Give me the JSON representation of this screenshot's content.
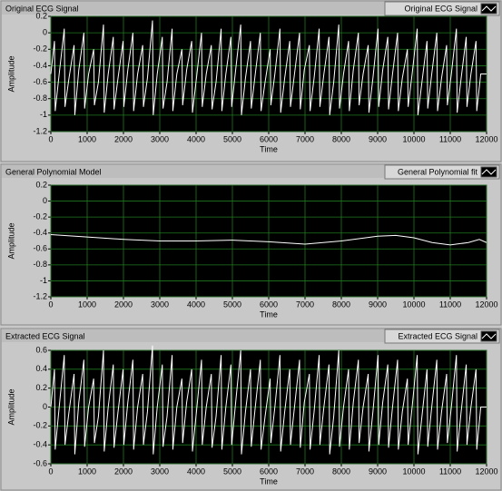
{
  "chart_data": [
    {
      "type": "line",
      "title": "Original ECG Signal",
      "xlabel": "Time",
      "ylabel": "Amplitude",
      "x": [
        0,
        100,
        120,
        230,
        370,
        390,
        500,
        640,
        660,
        770,
        910,
        930,
        1040,
        1180,
        1200,
        1310,
        1450,
        1470,
        1580,
        1720,
        1740,
        1850,
        1990,
        2010,
        2120,
        2260,
        2280,
        2390,
        2530,
        2550,
        2660,
        2800,
        2820,
        2930,
        3070,
        3090,
        3200,
        3340,
        3360,
        3470,
        3610,
        3630,
        3740,
        3880,
        3900,
        4010,
        4150,
        4170,
        4280,
        4420,
        4440,
        4550,
        4690,
        4710,
        4820,
        4960,
        4980,
        5090,
        5230,
        5250,
        5360,
        5500,
        5520,
        5630,
        5770,
        5790,
        5900,
        6040,
        6060,
        6170,
        6310,
        6330,
        6440,
        6580,
        6600,
        6710,
        6850,
        6870,
        6980,
        7120,
        7140,
        7250,
        7390,
        7410,
        7520,
        7660,
        7680,
        7790,
        7930,
        7950,
        8060,
        8200,
        8220,
        8330,
        8470,
        8490,
        8600,
        8740,
        8760,
        8870,
        9010,
        9030,
        9140,
        9280,
        9300,
        9410,
        9550,
        9570,
        9680,
        9820,
        9840,
        9950,
        10090,
        10110,
        10220,
        10360,
        10380,
        10490,
        10630,
        10650,
        10760,
        10900,
        10920,
        11030,
        11170,
        11190,
        11300,
        11440,
        11460,
        11570,
        11710,
        11730,
        11840,
        12000
      ],
      "series": [
        {
          "name": "Original ECG Signal",
          "color": "#ffffff",
          "values": [
            -0.5,
            -0.1,
            -0.95,
            -0.5,
            0.05,
            -0.9,
            -0.55,
            -0.15,
            -1.0,
            -0.45,
            0.0,
            -0.92,
            -0.5,
            -0.2,
            -0.88,
            -0.6,
            0.1,
            -0.97,
            -0.5,
            -0.05,
            -0.93,
            -0.55,
            -0.1,
            -0.9,
            -0.45,
            0.0,
            -0.95,
            -0.5,
            -0.15,
            -0.9,
            -0.55,
            0.15,
            -1.0,
            -0.5,
            -0.05,
            -0.92,
            -0.6,
            0.05,
            -0.95,
            -0.5,
            -0.2,
            -0.88,
            -0.45,
            -0.1,
            -0.97,
            -0.55,
            0.0,
            -0.9,
            -0.5,
            -0.15,
            -0.93,
            -0.6,
            0.05,
            -0.95,
            -0.5,
            -0.05,
            -0.9,
            -0.45,
            0.1,
            -1.0,
            -0.55,
            -0.1,
            -0.92,
            -0.5,
            0.0,
            -0.95,
            -0.6,
            -0.2,
            -0.88,
            -0.5,
            0.05,
            -0.97,
            -0.55,
            -0.1,
            -0.9,
            -0.5,
            0.0,
            -0.93,
            -0.45,
            -0.15,
            -0.95,
            -0.55,
            0.05,
            -0.9,
            -0.5,
            -0.05,
            -1.0,
            -0.6,
            0.1,
            -0.92,
            -0.5,
            -0.1,
            -0.95,
            -0.45,
            0.0,
            -0.88,
            -0.5,
            -0.15,
            -0.97,
            -0.55,
            0.05,
            -0.9,
            -0.45,
            -0.05,
            -0.93,
            -0.5,
            0.0,
            -0.95,
            -0.55,
            -0.2,
            -0.9,
            -0.5,
            0.05,
            -1.0,
            -0.6,
            -0.1,
            -0.92,
            -0.5,
            0.0,
            -0.95,
            -0.55,
            -0.15,
            -0.88,
            -0.5,
            0.05,
            -0.97,
            -0.55,
            -0.05,
            -0.9,
            -0.5,
            -0.1,
            -0.95,
            -0.5,
            -0.5
          ]
        }
      ],
      "xlim": [
        0,
        12000
      ],
      "xticks": [
        0,
        1000,
        2000,
        3000,
        4000,
        5000,
        6000,
        7000,
        8000,
        9000,
        10000,
        11000,
        12000
      ],
      "ylim": [
        -1.2,
        0.2
      ],
      "yticks": [
        -1.2,
        -1,
        -0.8,
        -0.6,
        -0.4,
        -0.2,
        0,
        0.2
      ],
      "grid": true
    },
    {
      "type": "line",
      "title": "General Polynomial Model",
      "xlabel": "Time",
      "ylabel": "Amplitude",
      "x": [
        0,
        1000,
        2000,
        3000,
        4000,
        5000,
        6000,
        7000,
        8000,
        9000,
        9500,
        10000,
        10500,
        11000,
        11500,
        11800,
        12000
      ],
      "series": [
        {
          "name": "General Polynomial fit",
          "color": "#ffffff",
          "values": [
            -0.42,
            -0.45,
            -0.48,
            -0.5,
            -0.5,
            -0.49,
            -0.51,
            -0.54,
            -0.5,
            -0.44,
            -0.43,
            -0.46,
            -0.52,
            -0.55,
            -0.52,
            -0.48,
            -0.52
          ]
        }
      ],
      "xlim": [
        0,
        12000
      ],
      "xticks": [
        0,
        1000,
        2000,
        3000,
        4000,
        5000,
        6000,
        7000,
        8000,
        9000,
        10000,
        11000,
        12000
      ],
      "ylim": [
        -1.2,
        0.2
      ],
      "yticks": [
        -1.2,
        -1,
        -0.8,
        -0.6,
        -0.4,
        -0.2,
        0,
        0.2
      ],
      "grid": true
    },
    {
      "type": "line",
      "title": "Extracted ECG Signal",
      "xlabel": "Time",
      "ylabel": "Amplitude",
      "x": [
        0,
        100,
        120,
        230,
        370,
        390,
        500,
        640,
        660,
        770,
        910,
        930,
        1040,
        1180,
        1200,
        1310,
        1450,
        1470,
        1580,
        1720,
        1740,
        1850,
        1990,
        2010,
        2120,
        2260,
        2280,
        2390,
        2530,
        2550,
        2660,
        2800,
        2820,
        2930,
        3070,
        3090,
        3200,
        3340,
        3360,
        3470,
        3610,
        3630,
        3740,
        3880,
        3900,
        4010,
        4150,
        4170,
        4280,
        4420,
        4440,
        4550,
        4690,
        4710,
        4820,
        4960,
        4980,
        5090,
        5230,
        5250,
        5360,
        5500,
        5520,
        5630,
        5770,
        5790,
        5900,
        6040,
        6060,
        6170,
        6310,
        6330,
        6440,
        6580,
        6600,
        6710,
        6850,
        6870,
        6980,
        7120,
        7140,
        7250,
        7390,
        7410,
        7520,
        7660,
        7680,
        7790,
        7930,
        7950,
        8060,
        8200,
        8220,
        8330,
        8470,
        8490,
        8600,
        8740,
        8760,
        8870,
        9010,
        9030,
        9140,
        9280,
        9300,
        9410,
        9550,
        9570,
        9680,
        9820,
        9840,
        9950,
        10090,
        10110,
        10220,
        10360,
        10380,
        10490,
        10630,
        10650,
        10760,
        10900,
        10920,
        11030,
        11170,
        11190,
        11300,
        11440,
        11460,
        11570,
        11710,
        11730,
        11840,
        12000
      ],
      "series": [
        {
          "name": "Extracted ECG Signal",
          "color": "#ffffff",
          "values": [
            0,
            0.4,
            -0.45,
            0,
            0.55,
            -0.4,
            -0.05,
            0.35,
            -0.5,
            0.05,
            0.5,
            -0.42,
            0,
            0.3,
            -0.38,
            -0.1,
            0.6,
            -0.47,
            0,
            0.45,
            -0.43,
            -0.05,
            0.4,
            -0.4,
            0.05,
            0.5,
            -0.45,
            0,
            0.35,
            -0.4,
            -0.05,
            0.65,
            -0.5,
            0,
            0.45,
            -0.42,
            -0.1,
            0.55,
            -0.45,
            0,
            0.3,
            -0.38,
            0.05,
            0.4,
            -0.47,
            -0.05,
            0.5,
            -0.4,
            0,
            0.35,
            -0.43,
            -0.1,
            0.55,
            -0.45,
            0,
            0.45,
            -0.4,
            0.05,
            0.6,
            -0.5,
            -0.05,
            0.4,
            -0.42,
            0,
            0.5,
            -0.45,
            -0.1,
            0.3,
            -0.38,
            0,
            0.55,
            -0.47,
            -0.05,
            0.4,
            -0.4,
            0,
            0.5,
            -0.43,
            0.05,
            0.35,
            -0.45,
            -0.05,
            0.55,
            -0.4,
            0,
            0.45,
            -0.5,
            -0.1,
            0.6,
            -0.42,
            0,
            0.4,
            -0.45,
            0.05,
            0.5,
            -0.38,
            0,
            0.35,
            -0.47,
            -0.05,
            0.55,
            -0.4,
            0.05,
            0.45,
            -0.43,
            0,
            0.5,
            -0.45,
            -0.05,
            0.3,
            -0.4,
            0,
            0.55,
            -0.5,
            -0.1,
            0.4,
            -0.42,
            0,
            0.5,
            -0.45,
            -0.05,
            0.35,
            -0.38,
            0,
            0.55,
            -0.47,
            -0.05,
            0.45,
            -0.4,
            0,
            0.4,
            -0.45,
            0,
            0
          ]
        }
      ],
      "xlim": [
        0,
        12000
      ],
      "xticks": [
        0,
        1000,
        2000,
        3000,
        4000,
        5000,
        6000,
        7000,
        8000,
        9000,
        10000,
        11000,
        12000
      ],
      "ylim": [
        -0.6,
        0.6
      ],
      "yticks": [
        -0.6,
        -0.4,
        -0.2,
        0,
        0.2,
        0.4,
        0.6
      ],
      "grid": true
    }
  ]
}
